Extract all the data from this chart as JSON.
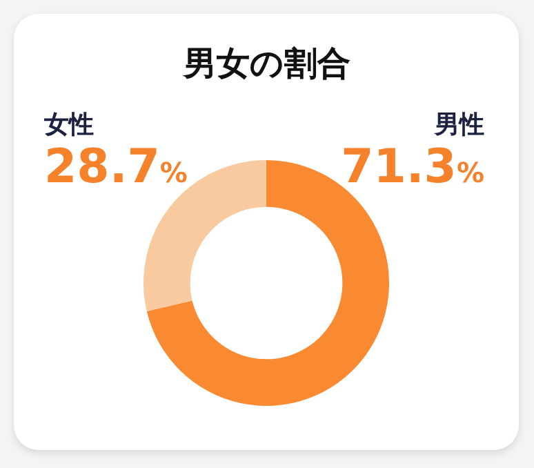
{
  "chart_data": {
    "type": "donut",
    "title": "男女の割合",
    "categories": [
      "男性",
      "女性"
    ],
    "values": [
      71.3,
      28.7
    ],
    "colors": [
      "#fa8a32",
      "#f9caa0"
    ],
    "value_labels": [
      "71.3%",
      "28.7%"
    ],
    "legend": false
  }
}
